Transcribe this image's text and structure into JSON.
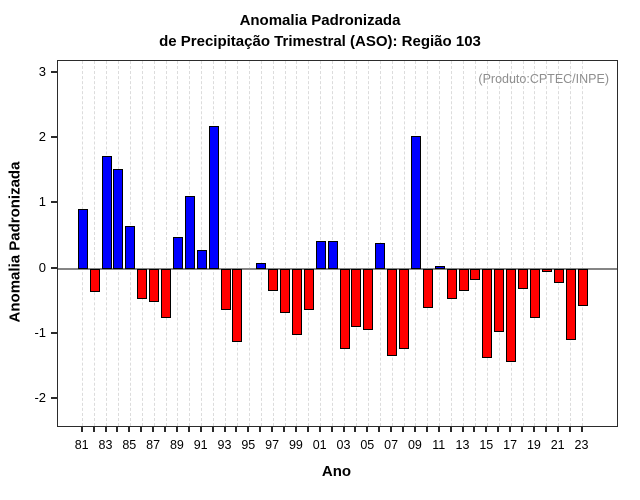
{
  "title": {
    "line1": "Anomalia Padronizada",
    "line2": "de Precipitação Trimestral (ASO): Região 103"
  },
  "annotation": "(Produto:CPTEC/INPE)",
  "axes": {
    "x_label": "Ano",
    "y_label": "Anomalia Padronizada",
    "y_ticks": [
      3,
      2,
      1,
      0,
      -1,
      -2
    ],
    "x_tick_labels": [
      "81",
      "83",
      "85",
      "87",
      "89",
      "91",
      "93",
      "95",
      "97",
      "99",
      "01",
      "03",
      "05",
      "07",
      "09",
      "11",
      "13",
      "15",
      "17",
      "19",
      "21",
      "23"
    ]
  },
  "chart_data": {
    "type": "bar",
    "title": "Anomalia Padronizada de Precipitação Trimestral (ASO): Região 103",
    "xlabel": "Ano",
    "ylabel": "Anomalia Padronizada",
    "ylim": [
      -2.41,
      3.18
    ],
    "grid": "vertical-dashed-per-year",
    "legend": "none",
    "zero_line": true,
    "categories": [
      "81",
      "82",
      "83",
      "84",
      "85",
      "86",
      "87",
      "88",
      "89",
      "90",
      "91",
      "92",
      "93",
      "94",
      "95",
      "96",
      "97",
      "98",
      "99",
      "00",
      "01",
      "02",
      "03",
      "04",
      "05",
      "06",
      "07",
      "08",
      "09",
      "10",
      "11",
      "12",
      "13",
      "14",
      "15",
      "16",
      "17",
      "18",
      "19",
      "20",
      "21",
      "22",
      "23"
    ],
    "values": [
      0.92,
      -0.36,
      1.73,
      1.53,
      0.66,
      -0.46,
      -0.51,
      -0.76,
      0.48,
      1.11,
      0.28,
      2.19,
      -0.63,
      -1.12,
      0.0,
      0.09,
      -0.34,
      -0.68,
      -1.02,
      -0.63,
      0.42,
      0.42,
      -1.23,
      -0.89,
      -0.94,
      0.39,
      -1.34,
      -1.23,
      2.03,
      -0.61,
      0.04,
      -0.46,
      -0.35,
      -0.17,
      -1.37,
      -0.97,
      -1.43,
      -0.31,
      -0.75,
      -0.05,
      -0.22,
      -1.09,
      -0.57
    ],
    "colors": {
      "positive": "#0000ff",
      "negative": "#ff0000",
      "bar_border": "#000000",
      "zero_line": "#858585",
      "gridline": "#dcdcdc",
      "annotation_text": "#8e8e8e",
      "axis": "#000000"
    }
  }
}
